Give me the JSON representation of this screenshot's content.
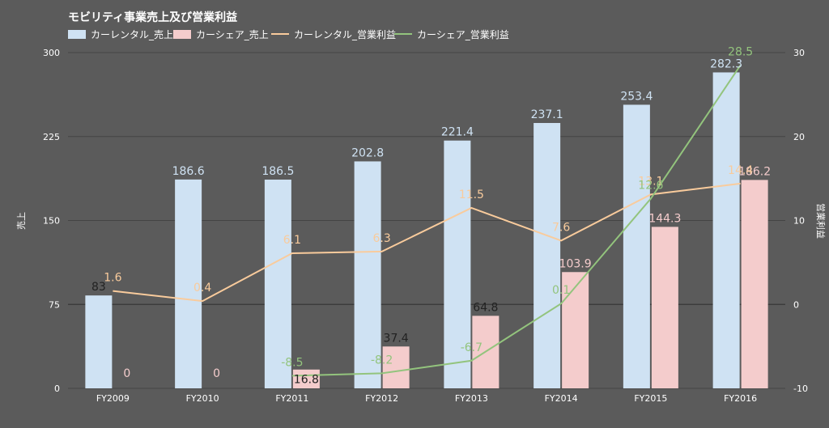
{
  "chart_data": {
    "type": "bar",
    "title": "モビリティ事業売上及び営業利益",
    "categories": [
      "FY2009",
      "FY2010",
      "FY2011",
      "FY2012",
      "FY2013",
      "FY2014",
      "FY2015",
      "FY2016"
    ],
    "ylabel_left": "売上",
    "ylabel_right": "営業利益",
    "ylim_left": [
      0,
      300
    ],
    "yticks_left": [
      0,
      75,
      150,
      225,
      300
    ],
    "ylim_right": [
      -10,
      30
    ],
    "yticks_right": [
      -10,
      0,
      10,
      20,
      30
    ],
    "legend_position": "top-left",
    "grid": true,
    "bar_series": [
      {
        "name": "カーレンタル_売上",
        "color": "#cfe2f3",
        "label_color": "#cfe2f3",
        "values": [
          83,
          186.6,
          186.5,
          202.8,
          221.4,
          237.1,
          253.4,
          282.3
        ],
        "labels": [
          "83",
          "186.6",
          "186.5",
          "202.8",
          "221.4",
          "237.1",
          "253.4",
          "282.3"
        ]
      },
      {
        "name": "カーシェア_売上",
        "color": "#f4cccc",
        "label_color": "#f4cccc",
        "values": [
          0,
          0,
          16.8,
          37.4,
          64.8,
          103.9,
          144.3,
          186.2
        ],
        "labels": [
          "0",
          "0",
          "16.8",
          "37.4",
          "64.8",
          "103.9",
          "144.3",
          "186.2"
        ]
      }
    ],
    "line_series": [
      {
        "name": "カーレンタル_営業利益",
        "color": "#f9cb9c",
        "label_color": "#f9cb9c",
        "values": [
          1.6,
          0.4,
          6.1,
          6.3,
          11.5,
          7.6,
          13.1,
          14.4
        ],
        "labels": [
          "1.6",
          "0.4",
          "6.1",
          "6.3",
          "11.5",
          "7.6",
          "13.1",
          "14.4"
        ]
      },
      {
        "name": "カーシェア_営業利益",
        "color": "#93c47d",
        "label_color": "#93c47d",
        "values": [
          null,
          null,
          -8.5,
          -8.2,
          -6.7,
          0.1,
          12.6,
          28.5
        ],
        "labels": [
          "",
          "",
          "-8.5",
          "-8.2",
          "-6.7",
          "0.1",
          "12.6",
          "28.5"
        ]
      }
    ]
  }
}
